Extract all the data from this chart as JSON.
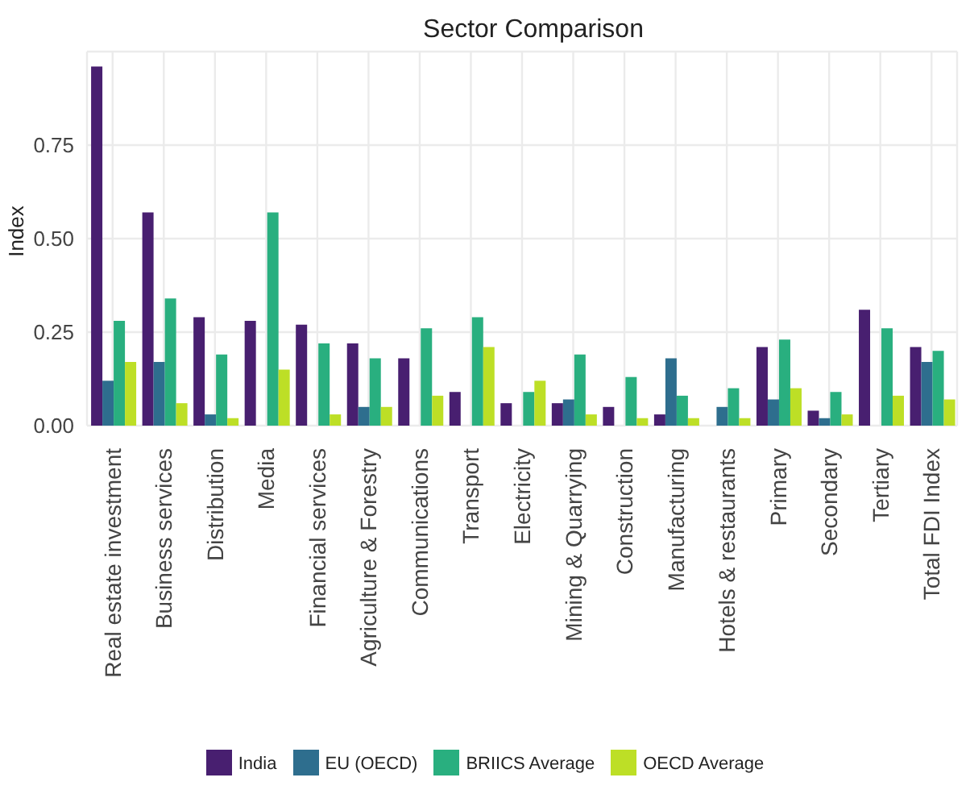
{
  "chart_data": {
    "type": "bar",
    "title": "Sector Comparison",
    "ylabel": "Index",
    "categories": [
      "Real estate investment",
      "Business services",
      "Distribution",
      "Media",
      "Financial services",
      "Agriculture & Forestry",
      "Communications",
      "Transport",
      "Electricity",
      "Mining & Quarrying",
      "Construction",
      "Manufacturing",
      "Hotels & restaurants",
      "Primary",
      "Secondary",
      "Tertiary",
      "Total FDI Index"
    ],
    "series": [
      {
        "name": "India",
        "color": "#481f70",
        "values": [
          0.96,
          0.57,
          0.29,
          0.28,
          0.27,
          0.22,
          0.18,
          0.09,
          0.06,
          0.06,
          0.05,
          0.03,
          0,
          0.21,
          0.04,
          0.31,
          0.21
        ]
      },
      {
        "name": "EU (OECD)",
        "color": "#2e6e8e",
        "values": [
          0.12,
          0.17,
          0.03,
          0,
          0,
          0.05,
          0,
          0,
          0,
          0.07,
          0,
          0.18,
          0.05,
          0.07,
          0.02,
          0,
          0.17
        ]
      },
      {
        "name": "BRIICS Average",
        "color": "#29af7f",
        "values": [
          0.28,
          0.34,
          0.19,
          0.57,
          0.22,
          0.18,
          0.26,
          0.29,
          0.09,
          0.19,
          0.13,
          0.08,
          0.1,
          0.23,
          0.09,
          0.26,
          0.2
        ]
      },
      {
        "name": "OECD Average",
        "color": "#bddf26",
        "values": [
          0.17,
          0.06,
          0.02,
          0.15,
          0.03,
          0.05,
          0.08,
          0.21,
          0.12,
          0.03,
          0.02,
          0.02,
          0.02,
          0.1,
          0.03,
          0.08,
          0.07
        ]
      }
    ],
    "ylim": [
      0,
      1
    ],
    "yticks": [
      {
        "value": 0,
        "label": "0.00"
      },
      0.25,
      {
        "value": 0.5,
        "label": "0.50"
      },
      0.75
    ],
    "grid": true,
    "legend": "bottom"
  }
}
